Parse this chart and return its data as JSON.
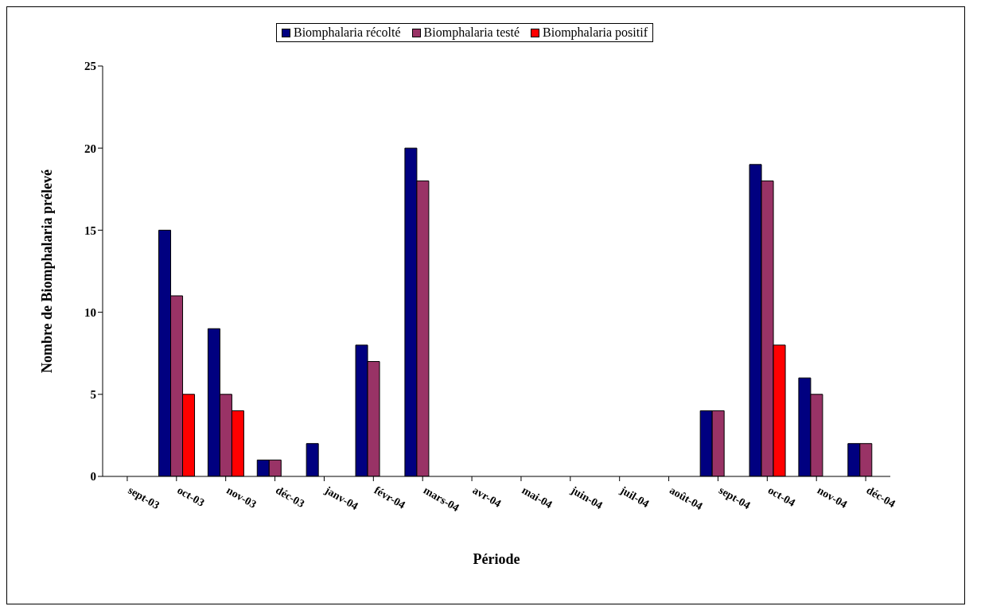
{
  "chart_data": {
    "type": "bar",
    "xlabel": "Période",
    "ylabel": "Nombre de Biomphalaria prélevé",
    "categories": [
      "sept-03",
      "oct-03",
      "nov-03",
      "déc-03",
      "janv-04",
      "févr-04",
      "mars-04",
      "avr-04",
      "mai-04",
      "juin-04",
      "juil-04",
      "août-04",
      "sept-04",
      "oct-04",
      "nov-04",
      "déc-04"
    ],
    "series": [
      {
        "name": "Biomphalaria récolté",
        "color": "#000080",
        "values": [
          0,
          15,
          9,
          1,
          2,
          8,
          20,
          0,
          0,
          0,
          0,
          0,
          4,
          19,
          6,
          2
        ]
      },
      {
        "name": "Biomphalaria testé",
        "color": "#993366",
        "values": [
          0,
          11,
          5,
          1,
          0,
          7,
          18,
          0,
          0,
          0,
          0,
          0,
          4,
          18,
          5,
          2
        ]
      },
      {
        "name": "Biomphalaria positif",
        "color": "#ff0000",
        "values": [
          0,
          5,
          4,
          0,
          0,
          0,
          0,
          0,
          0,
          0,
          0,
          0,
          0,
          8,
          0,
          0
        ]
      }
    ],
    "ylim": [
      0,
      25
    ],
    "yticks": [
      0,
      5,
      10,
      15,
      20,
      25
    ],
    "grid": false,
    "legend": "top"
  }
}
